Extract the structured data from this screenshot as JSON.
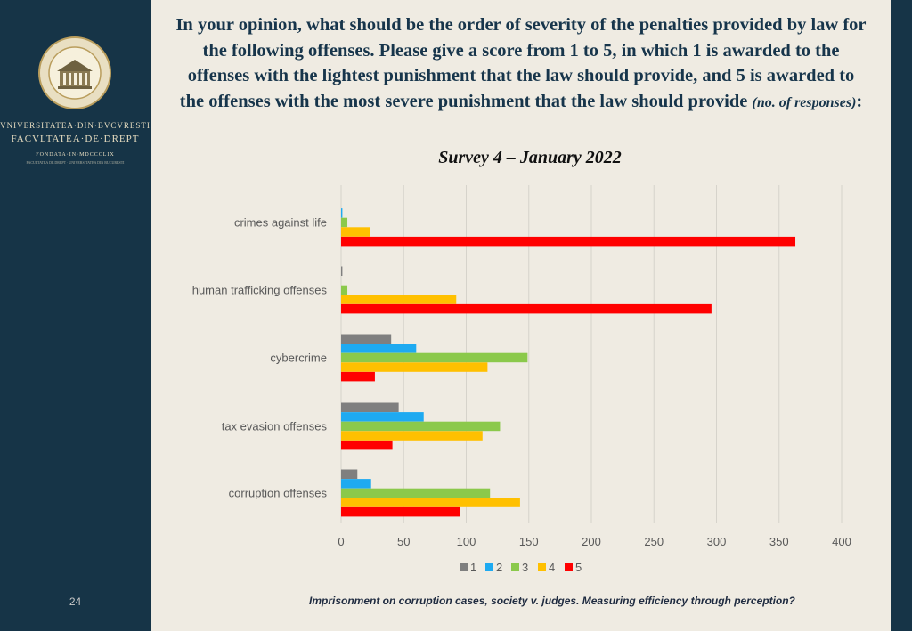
{
  "sidebar": {
    "university": "VNIVERSITATEA·DIN·BVCVRESTI",
    "faculty": "FACVLTATEA·DE·DREPT",
    "founded": "FONDATA·IN·MDCCCLIX",
    "founded_sub": "FACULTATEA DE DREPT · UNIVERSITATEA DIN BUCURESTI",
    "page_number": "24"
  },
  "slide": {
    "title": "In your opinion, what should be the order of severity of the penalties provided by law for the following offenses. Please give a score from 1 to 5, in which 1 is awarded to the offenses with the lightest punishment that the law should provide, and 5 is awarded to the offenses with the most severe punishment that the law should provide",
    "title_note": "(no. of responses)",
    "title_colon": ":",
    "subtitle": "Survey 4 – January 2022",
    "footer": "Imprisonment on corruption cases, society v. judges. Measuring efficiency through perception?"
  },
  "colors": {
    "sidebar": "#163447",
    "background": "#efebe2",
    "title": "#17354b"
  },
  "chart_data": {
    "type": "bar",
    "orientation": "horizontal",
    "categories": [
      "crimes against life",
      "human trafficking offenses",
      "cybercrime",
      "tax evasion offenses",
      "corruption offenses"
    ],
    "series": [
      {
        "name": "1",
        "color": "#7f7f7f",
        "values": [
          0,
          1,
          40,
          46,
          13
        ]
      },
      {
        "name": "2",
        "color": "#1eaaf1",
        "values": [
          1,
          0,
          60,
          66,
          24
        ]
      },
      {
        "name": "3",
        "color": "#8bc94b",
        "values": [
          5,
          5,
          149,
          127,
          119
        ]
      },
      {
        "name": "4",
        "color": "#ffc000",
        "values": [
          23,
          92,
          117,
          113,
          143
        ]
      },
      {
        "name": "5",
        "color": "#ff0000",
        "values": [
          363,
          296,
          27,
          41,
          95
        ]
      }
    ],
    "xlim": [
      0,
      400
    ],
    "xticks": [
      "0",
      "50",
      "100",
      "150",
      "200",
      "250",
      "300",
      "350",
      "400"
    ],
    "grid": "vertical",
    "legend_position": "bottom"
  }
}
